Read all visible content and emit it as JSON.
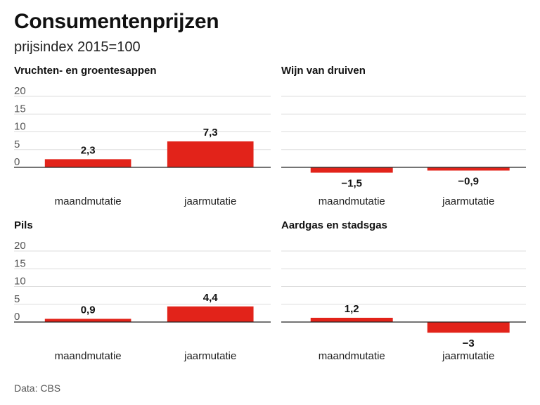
{
  "title": "Consumentenprijzen",
  "subtitle": "prijsindex 2015=100",
  "footer": "Data: CBS",
  "colors": {
    "bar": "#e2231a",
    "grid": "#dddddd",
    "axis": "#222222"
  },
  "chart_data": [
    {
      "type": "bar",
      "title": "Vruchten- en groentesappen",
      "categories": [
        "maandmutatie",
        "jaarmutatie"
      ],
      "values": [
        2.3,
        7.3
      ],
      "value_labels": [
        "2,3",
        "7,3"
      ],
      "ylim": [
        0,
        20
      ],
      "yticks": [
        0,
        5,
        10,
        15,
        20
      ],
      "show_tick_labels": true,
      "grid": true
    },
    {
      "type": "bar",
      "title": "Wijn van druiven",
      "categories": [
        "maandmutatie",
        "jaarmutatie"
      ],
      "values": [
        -1.5,
        -0.9
      ],
      "value_labels": [
        "−1,5",
        "−0,9"
      ],
      "ylim": [
        0,
        20
      ],
      "yticks": [
        0,
        5,
        10,
        15,
        20
      ],
      "show_tick_labels": false,
      "grid": true
    },
    {
      "type": "bar",
      "title": "Pils",
      "categories": [
        "maandmutatie",
        "jaarmutatie"
      ],
      "values": [
        0.9,
        4.4
      ],
      "value_labels": [
        "0,9",
        "4,4"
      ],
      "ylim": [
        0,
        20
      ],
      "yticks": [
        0,
        5,
        10,
        15,
        20
      ],
      "show_tick_labels": true,
      "grid": true
    },
    {
      "type": "bar",
      "title": "Aardgas en stadsgas",
      "categories": [
        "maandmutatie",
        "jaarmutatie"
      ],
      "values": [
        1.2,
        -3
      ],
      "value_labels": [
        "1,2",
        "−3"
      ],
      "ylim": [
        0,
        20
      ],
      "yticks": [
        0,
        5,
        10,
        15,
        20
      ],
      "show_tick_labels": false,
      "grid": true
    }
  ]
}
